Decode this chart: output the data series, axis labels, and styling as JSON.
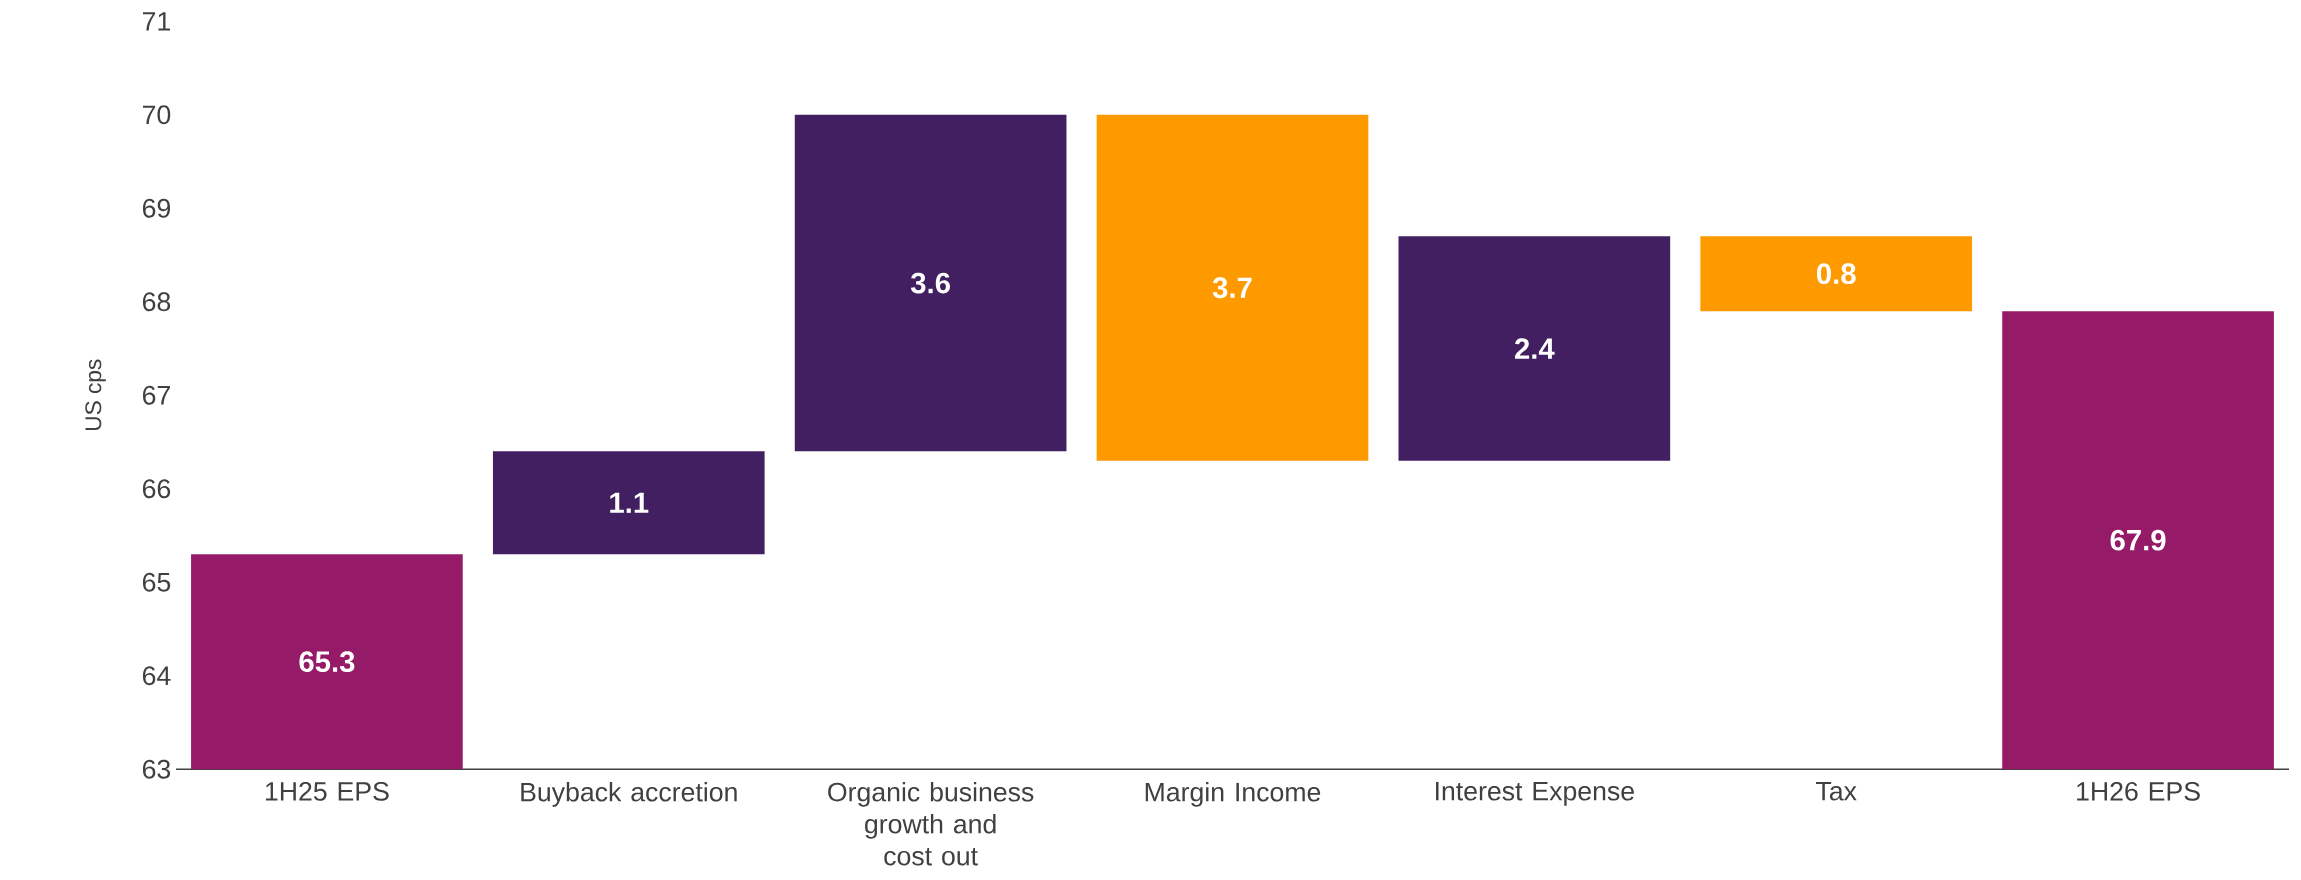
{
  "chart_data": {
    "type": "bar",
    "ylabel": "US cps",
    "categories": [
      "1H25 EPS",
      "Buyback accretion",
      "Organic business growth and cost out",
      "Margin Income",
      "Interest Expense",
      "Tax",
      "1H26 EPS"
    ],
    "base": [
      63,
      65.3,
      66.4,
      70,
      66.3,
      68.7,
      63
    ],
    "values": [
      2.3,
      1.1,
      3.6,
      -3.7,
      2.4,
      -0.8,
      4.9
    ],
    "colors": [
      "#951b69",
      "#421f60",
      "#421f60",
      "#ff9900",
      "#421f60",
      "#ff9900",
      "#951b69"
    ],
    "value_labels": [
      "65.3",
      "1.1",
      "3.6",
      "3.7",
      "2.4",
      "0.8",
      "67.9"
    ],
    "ylim": [
      63,
      71
    ],
    "yticks": [
      63,
      64,
      65,
      66,
      67,
      68,
      69,
      70,
      71
    ],
    "grid": false
  }
}
